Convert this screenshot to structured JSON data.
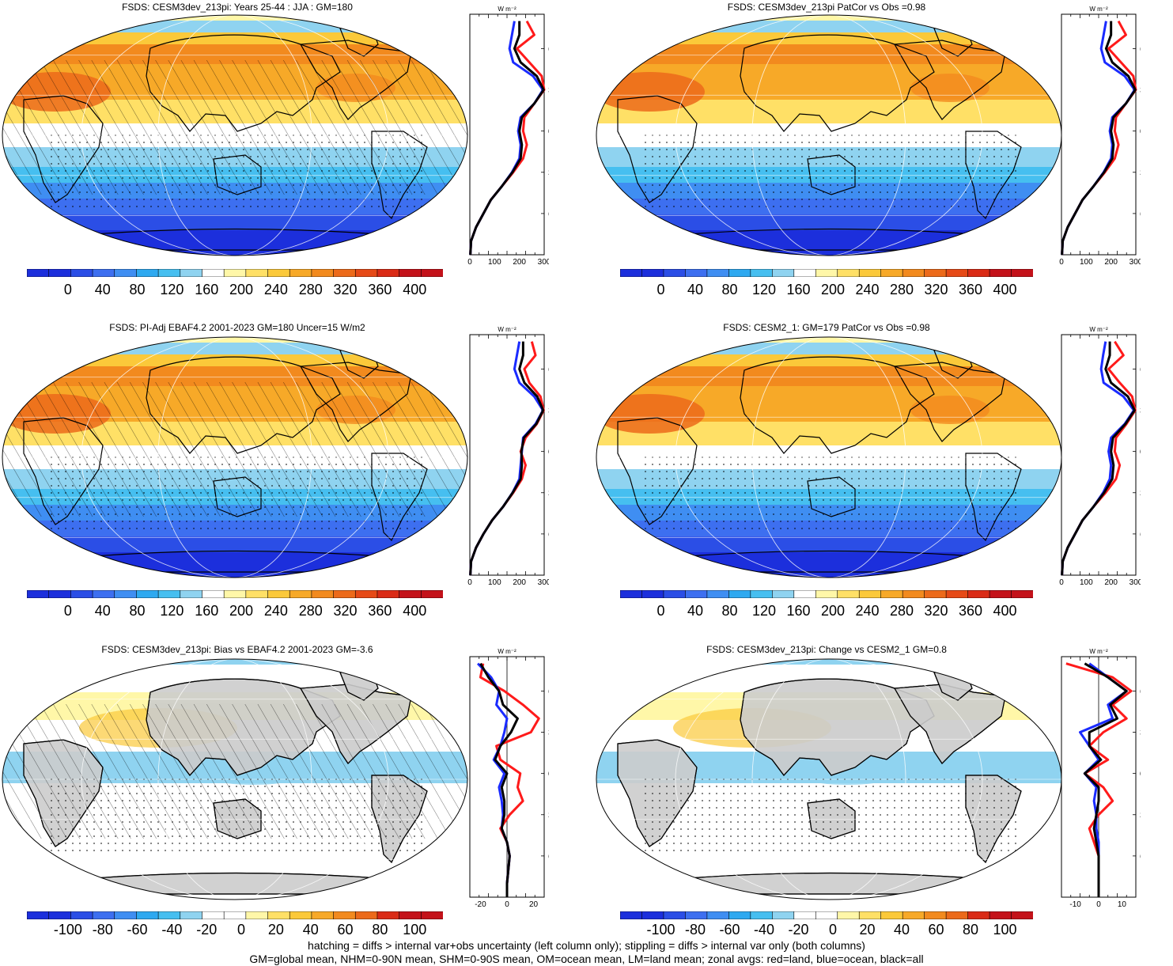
{
  "panels": [
    {
      "title": "FSDS: CESM3dev_213pi: Years 25-44 : JJA : GM=180",
      "kind": "abs",
      "hatch": true,
      "cbar": [
        "0",
        "40",
        "80",
        "120",
        "160",
        "200",
        "240",
        "280",
        "320",
        "360",
        "400"
      ],
      "zonal_xticks": [
        "0",
        "100",
        "200",
        "300"
      ],
      "zonal_unit": "W m⁻²",
      "zonal_lat_labels": [
        "60N",
        "30N",
        "0",
        "30S",
        "60S"
      ]
    },
    {
      "title": "FSDS: CESM3dev_213pi PatCor vs Obs =0.98",
      "kind": "abs",
      "hatch": false,
      "cbar": [
        "0",
        "40",
        "80",
        "120",
        "160",
        "200",
        "240",
        "280",
        "320",
        "360",
        "400"
      ],
      "zonal_xticks": [
        "0",
        "100",
        "200",
        "300"
      ],
      "zonal_unit": "W m⁻²",
      "zonal_lat_labels": [
        "60N",
        "30N",
        "0",
        "30S",
        "60S"
      ]
    },
    {
      "title": "FSDS: PI-Adj EBAF4.2 2001-2023 GM=180 Uncer=15 W/m2",
      "kind": "abs",
      "hatch": true,
      "cbar": [
        "0",
        "40",
        "80",
        "120",
        "160",
        "200",
        "240",
        "280",
        "320",
        "360",
        "400"
      ],
      "zonal_xticks": [
        "0",
        "100",
        "200",
        "300"
      ],
      "zonal_unit": "W m⁻²",
      "zonal_lat_labels": [
        "60N",
        "30N",
        "0",
        "30S",
        "60S"
      ]
    },
    {
      "title": "FSDS: CESM2_1: GM=179 PatCor vs Obs =0.98",
      "kind": "abs",
      "hatch": false,
      "cbar": [
        "0",
        "40",
        "80",
        "120",
        "160",
        "200",
        "240",
        "280",
        "320",
        "360",
        "400"
      ],
      "zonal_xticks": [
        "0",
        "100",
        "200",
        "300"
      ],
      "zonal_unit": "W m⁻²",
      "zonal_lat_labels": [
        "60N",
        "30N",
        "0",
        "30S",
        "60S"
      ]
    },
    {
      "title": "FSDS: CESM3dev_213pi: Bias vs EBAF4.2 2001-2023 GM=-3.6",
      "kind": "diff",
      "hatch": true,
      "cbar": [
        "-100",
        "-80",
        "-60",
        "-40",
        "-20",
        "0",
        "20",
        "40",
        "60",
        "80",
        "100"
      ],
      "zonal_xticks": [
        "-20",
        "0",
        "20"
      ],
      "zonal_unit": "W m⁻²",
      "zonal_lat_labels": [
        "60N",
        "30N",
        "0",
        "30S",
        "60S"
      ]
    },
    {
      "title": "FSDS: CESM3dev_213pi: Change vs CESM2_1 GM=0.8",
      "kind": "diff",
      "hatch": false,
      "cbar": [
        "-100",
        "-80",
        "-60",
        "-40",
        "-20",
        "0",
        "20",
        "40",
        "60",
        "80",
        "100"
      ],
      "zonal_xticks": [
        "-10",
        "0",
        "10"
      ],
      "zonal_unit": "W m⁻²",
      "zonal_lat_labels": [
        "60N",
        "30N",
        "0",
        "30S",
        "60S"
      ]
    }
  ],
  "colors": {
    "abs_scale": [
      "#1c2fdc",
      "#2b4ee6",
      "#3d6ff0",
      "#3f8ef2",
      "#2ea9f0",
      "#46bff0",
      "#8fd3f0",
      "#ffffff",
      "#fff7a8",
      "#ffe066",
      "#fbc93a",
      "#f7a928",
      "#f28a1e",
      "#ec6a1a",
      "#e64a17",
      "#da2b16",
      "#c4121a"
    ],
    "diff_scale": [
      "#1c2fdc",
      "#2b4ee6",
      "#3d6ff0",
      "#3f8ef2",
      "#2ea9f0",
      "#46bff0",
      "#8fd3f0",
      "#ffffff",
      "#ffffff",
      "#fff7a8",
      "#ffe066",
      "#fbc93a",
      "#f7a928",
      "#f28a1e",
      "#ec6a1a",
      "#da2b16",
      "#c4121a"
    ],
    "land": "#cccccc",
    "zonal_land": "#ff1a1a",
    "zonal_ocean": "#1a2bff",
    "zonal_all": "#000000"
  },
  "chart_data": [
    {
      "type": "line",
      "title": "FSDS: CESM3dev_213pi: Years 25-44 : JJA : GM=180",
      "xlabel": "W m-2",
      "xlim": [
        0,
        300
      ],
      "y_lat": [
        -90,
        -80,
        -70,
        -60,
        -50,
        -40,
        -30,
        -20,
        -10,
        0,
        10,
        20,
        30,
        40,
        50,
        60,
        70,
        80
      ],
      "series": [
        {
          "name": "land",
          "values": [
            2,
            5,
            25,
            55,
            85,
            130,
            175,
            215,
            230,
            215,
            220,
            260,
            300,
            290,
            240,
            190,
            260,
            230
          ]
        },
        {
          "name": "ocean",
          "values": [
            2,
            5,
            25,
            55,
            85,
            130,
            170,
            200,
            205,
            195,
            205,
            260,
            295,
            255,
            175,
            160,
            170,
            180
          ]
        },
        {
          "name": "all",
          "values": [
            2,
            5,
            25,
            55,
            85,
            130,
            172,
            205,
            210,
            200,
            210,
            260,
            298,
            270,
            205,
            180,
            200,
            200
          ]
        }
      ]
    },
    {
      "type": "line",
      "title": "FSDS: CESM3dev_213pi PatCor vs Obs =0.98",
      "xlabel": "W m-2",
      "xlim": [
        0,
        300
      ],
      "y_lat": [
        -90,
        -80,
        -70,
        -60,
        -50,
        -40,
        -30,
        -20,
        -10,
        0,
        10,
        20,
        30,
        40,
        50,
        60,
        70,
        80
      ],
      "series": [
        {
          "name": "land",
          "values": [
            2,
            5,
            25,
            55,
            85,
            130,
            175,
            215,
            230,
            215,
            220,
            260,
            300,
            290,
            240,
            190,
            260,
            230
          ]
        },
        {
          "name": "ocean",
          "values": [
            2,
            5,
            25,
            55,
            85,
            130,
            170,
            200,
            205,
            195,
            205,
            260,
            295,
            255,
            175,
            160,
            170,
            180
          ]
        },
        {
          "name": "all",
          "values": [
            2,
            5,
            25,
            55,
            85,
            130,
            172,
            205,
            210,
            200,
            210,
            260,
            298,
            270,
            205,
            180,
            200,
            200
          ]
        }
      ]
    },
    {
      "type": "line",
      "title": "FSDS: PI-Adj EBAF4.2 2001-2023 GM=180 Uncer=15 W/m2",
      "xlabel": "W m-2",
      "xlim": [
        0,
        300
      ],
      "y_lat": [
        -90,
        -80,
        -70,
        -60,
        -50,
        -40,
        -30,
        -20,
        -10,
        0,
        10,
        20,
        30,
        40,
        50,
        60,
        70,
        80
      ],
      "series": [
        {
          "name": "land",
          "values": [
            2,
            5,
            25,
            55,
            90,
            135,
            175,
            210,
            225,
            205,
            225,
            270,
            298,
            285,
            240,
            220,
            265,
            250
          ]
        },
        {
          "name": "ocean",
          "values": [
            2,
            5,
            25,
            55,
            90,
            135,
            172,
            200,
            205,
            210,
            215,
            265,
            295,
            260,
            200,
            180,
            190,
            200
          ]
        },
        {
          "name": "all",
          "values": [
            2,
            5,
            25,
            55,
            90,
            135,
            173,
            205,
            210,
            208,
            218,
            268,
            296,
            272,
            220,
            200,
            215,
            215
          ]
        }
      ]
    },
    {
      "type": "line",
      "title": "FSDS: CESM2_1: GM=179 PatCor vs Obs =0.98",
      "xlabel": "W m-2",
      "xlim": [
        0,
        300
      ],
      "y_lat": [
        -90,
        -80,
        -70,
        -60,
        -50,
        -40,
        -30,
        -20,
        -10,
        0,
        10,
        20,
        30,
        40,
        50,
        60,
        70,
        80
      ],
      "series": [
        {
          "name": "land",
          "values": [
            2,
            5,
            25,
            55,
            85,
            130,
            178,
            220,
            235,
            215,
            220,
            262,
            298,
            285,
            235,
            190,
            250,
            215
          ]
        },
        {
          "name": "ocean",
          "values": [
            2,
            5,
            25,
            55,
            85,
            130,
            168,
            195,
            200,
            190,
            200,
            255,
            292,
            250,
            170,
            160,
            168,
            178
          ]
        },
        {
          "name": "all",
          "values": [
            2,
            5,
            25,
            55,
            85,
            130,
            172,
            205,
            210,
            200,
            208,
            258,
            295,
            268,
            200,
            178,
            195,
            195
          ]
        }
      ]
    },
    {
      "type": "line",
      "title": "FSDS: CESM3dev_213pi: Bias vs EBAF4.2 2001-2023 GM=-3.6",
      "xlabel": "W m-2",
      "xlim": [
        -28,
        28
      ],
      "y_lat": [
        -90,
        -80,
        -70,
        -60,
        -50,
        -40,
        -30,
        -20,
        -10,
        0,
        10,
        20,
        30,
        40,
        50,
        60,
        70,
        80
      ],
      "series": [
        {
          "name": "land",
          "values": [
            0,
            0,
            1,
            2,
            0,
            -5,
            2,
            12,
            8,
            10,
            -5,
            -8,
            18,
            24,
            12,
            -2,
            -20,
            -18
          ]
        },
        {
          "name": "ocean",
          "values": [
            0,
            0,
            1,
            2,
            0,
            -4,
            -3,
            -4,
            -6,
            -2,
            -10,
            -5,
            -2,
            0,
            -8,
            -6,
            -12,
            -22
          ]
        },
        {
          "name": "all",
          "values": [
            0,
            0,
            1,
            2,
            0,
            -4,
            -2,
            -2,
            -4,
            0,
            -9,
            -5,
            3,
            8,
            -3,
            -6,
            -14,
            -20
          ]
        }
      ]
    },
    {
      "type": "line",
      "title": "FSDS: CESM3dev_213pi: Change vs CESM2_1 GM=0.8",
      "xlabel": "W m-2",
      "xlim": [
        -16,
        16
      ],
      "y_lat": [
        -90,
        -80,
        -70,
        -60,
        -50,
        -40,
        -30,
        -20,
        -10,
        0,
        10,
        20,
        30,
        40,
        50,
        60,
        70,
        80
      ],
      "series": [
        {
          "name": "land",
          "values": [
            0,
            0,
            0,
            0,
            -2,
            -4,
            0,
            6,
            2,
            -6,
            4,
            -4,
            2,
            12,
            6,
            14,
            6,
            -14
          ]
        },
        {
          "name": "ocean",
          "values": [
            0,
            0,
            0,
            0,
            0,
            -1,
            -1,
            -2,
            -1,
            -6,
            0,
            -4,
            -8,
            6,
            4,
            12,
            4,
            -4
          ]
        },
        {
          "name": "all",
          "values": [
            0,
            0,
            0,
            0,
            -1,
            -2,
            -1,
            0,
            0,
            -6,
            1,
            -4,
            -4,
            8,
            5,
            12,
            4,
            -6
          ]
        }
      ]
    }
  ],
  "footer": {
    "line1": "hatching = diffs > internal var+obs uncertainty (left column only); stippling = diffs > internal var only (both columns)",
    "line2": "GM=global mean, NHM=0-90N mean, SHM=0-90S mean, OM=ocean mean, LM=land mean; zonal avgs: red=land, blue=ocean, black=all"
  }
}
